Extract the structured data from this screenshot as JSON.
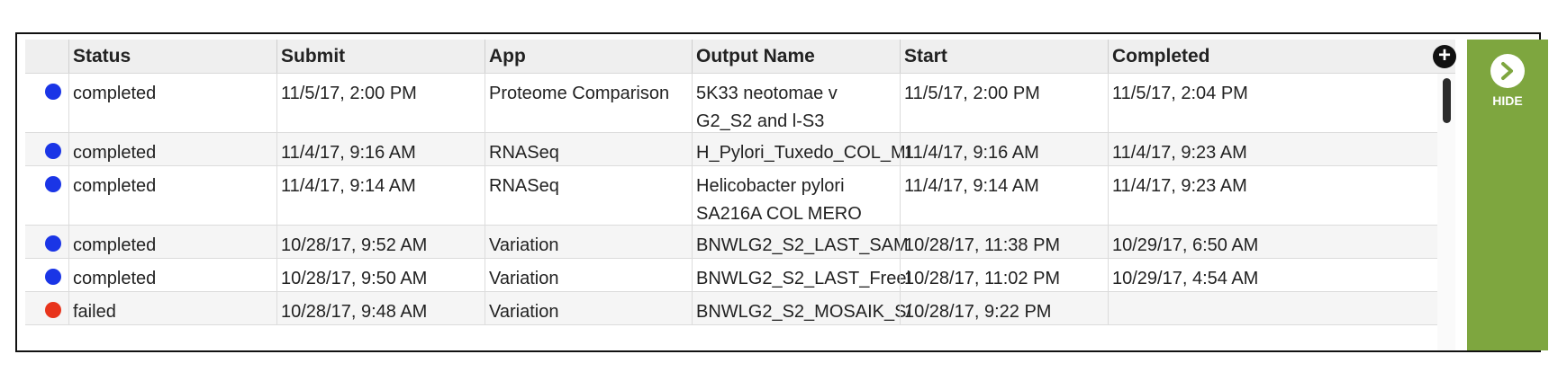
{
  "columns": [
    "",
    "Status",
    "Submit",
    "App",
    "Output Name",
    "Start",
    "Completed"
  ],
  "jobs": [
    {
      "status": "completed",
      "status_color": "#1a35e6",
      "submit": "11/5/17, 2:00 PM",
      "app": "Proteome Comparison",
      "output": "5K33 neotomae v G2_S2 and l-S3",
      "start": "11/5/17, 2:00 PM",
      "completed": "11/5/17, 2:04 PM"
    },
    {
      "status": "completed",
      "status_color": "#1a35e6",
      "submit": "11/4/17, 9:16 AM",
      "app": "RNASeq",
      "output": "H_Pylori_Tuxedo_COL_MI",
      "start": "11/4/17, 9:16 AM",
      "completed": "11/4/17, 9:23 AM"
    },
    {
      "status": "completed",
      "status_color": "#1a35e6",
      "submit": "11/4/17, 9:14 AM",
      "app": "RNASeq",
      "output": "Helicobacter pylori SA216A COL MERO",
      "start": "11/4/17, 9:14 AM",
      "completed": "11/4/17, 9:23 AM"
    },
    {
      "status": "completed",
      "status_color": "#1a35e6",
      "submit": "10/28/17, 9:52 AM",
      "app": "Variation",
      "output": "BNWLG2_S2_LAST_SAM",
      "start": "10/28/17, 11:38 PM",
      "completed": "10/29/17, 6:50 AM"
    },
    {
      "status": "completed",
      "status_color": "#1a35e6",
      "submit": "10/28/17, 9:50 AM",
      "app": "Variation",
      "output": "BNWLG2_S2_LAST_Freel",
      "start": "10/28/17, 11:02 PM",
      "completed": "10/29/17, 4:54 AM"
    },
    {
      "status": "failed",
      "status_color": "#e8341c",
      "submit": "10/28/17, 9:48 AM",
      "app": "Variation",
      "output": "BNWLG2_S2_MOSAIK_S/",
      "start": "10/28/17, 9:22 PM",
      "completed": ""
    }
  ],
  "add_column_icon": "plus-circle-icon",
  "hide_panel": {
    "label": "HIDE",
    "icon": "chevron-right-circle-icon",
    "color": "#7ea63f"
  }
}
